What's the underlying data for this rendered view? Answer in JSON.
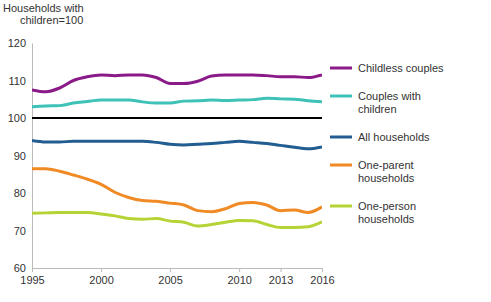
{
  "chart_data": {
    "type": "line",
    "y_label": "Households with children=100",
    "x": [
      1995,
      1996,
      1997,
      1998,
      1999,
      2000,
      2001,
      2002,
      2003,
      2004,
      2005,
      2006,
      2007,
      2008,
      2009,
      2010,
      2011,
      2012,
      2013,
      2014,
      2015,
      2016
    ],
    "xlim": [
      1995,
      2016
    ],
    "xticks": [
      1995,
      2000,
      2005,
      2010,
      2013,
      2016
    ],
    "ylim": [
      60,
      120
    ],
    "yticks": [
      60,
      70,
      80,
      90,
      100,
      110,
      120
    ],
    "series": [
      {
        "name": "Childless couples",
        "color": "#8b1a89",
        "values": [
          107.5,
          107,
          108,
          110,
          111,
          111.5,
          111.3,
          111.5,
          111.5,
          110.8,
          109.2,
          109.2,
          109.8,
          111.2,
          111.5,
          111.5,
          111.5,
          111.3,
          111,
          111,
          110.8,
          111.5
        ]
      },
      {
        "name": "Couples with children",
        "color": "#3ec1b6",
        "values": [
          103,
          103.2,
          103.3,
          104,
          104.4,
          104.8,
          104.8,
          104.8,
          104.3,
          104,
          104,
          104.5,
          104.6,
          104.8,
          104.7,
          104.8,
          104.9,
          105.3,
          105.1,
          105,
          104.6,
          104.3
        ]
      },
      {
        "color": "#000000",
        "values": [
          100,
          100,
          100,
          100,
          100,
          100,
          100,
          100,
          100,
          100,
          100,
          100,
          100,
          100,
          100,
          100,
          100,
          100,
          100,
          100,
          100,
          100
        ]
      },
      {
        "name": "All households",
        "color": "#225d91",
        "values": [
          94,
          93.6,
          93.6,
          93.8,
          93.8,
          93.8,
          93.8,
          93.8,
          93.8,
          93.5,
          93,
          92.8,
          93,
          93.2,
          93.5,
          93.8,
          93.5,
          93.2,
          92.7,
          92.2,
          91.8,
          92.3
        ]
      },
      {
        "name": "One-parent households",
        "color": "#f08a25",
        "values": [
          86.5,
          86.5,
          85.8,
          84.8,
          83.7,
          82.3,
          80.2,
          78.8,
          78,
          77.8,
          77.3,
          76.8,
          75.3,
          75,
          75.8,
          77.2,
          77.5,
          76.8,
          75.3,
          75.5,
          74.8,
          76.3
        ]
      },
      {
        "name": "One-person households",
        "color": "#b5d334",
        "values": [
          74.6,
          74.7,
          74.8,
          74.8,
          74.8,
          74.4,
          73.9,
          73.2,
          73,
          73.2,
          72.5,
          72.2,
          71.2,
          71.6,
          72.2,
          72.7,
          72.6,
          71.6,
          70.8,
          70.8,
          71,
          72.3
        ]
      }
    ]
  }
}
